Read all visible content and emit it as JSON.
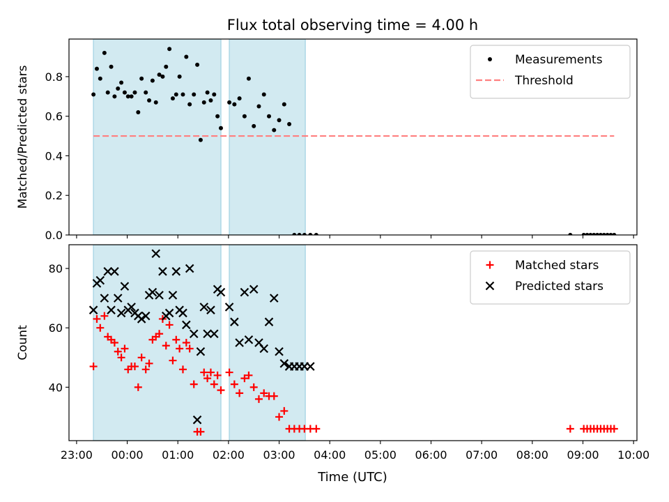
{
  "chart_data": {
    "type": "scatter",
    "title": "Flux total observing time = 4.00 h",
    "xlabel": "Time (UTC)",
    "xlim": [
      "22:51",
      "10:04"
    ],
    "xticks": [
      "23:00",
      "00:00",
      "01:00",
      "02:00",
      "03:00",
      "04:00",
      "05:00",
      "06:00",
      "07:00",
      "08:00",
      "09:00",
      "10:00"
    ],
    "shaded_intervals": [
      [
        "23:20",
        "01:51"
      ],
      [
        "02:01",
        "03:31"
      ]
    ],
    "shade_color": "#add8e6",
    "panels": [
      {
        "ylabel": "Matched/Predicted stars",
        "ylim": [
          0.0,
          0.99
        ],
        "yticks": [
          "0.0",
          "0.2",
          "0.4",
          "0.6",
          "0.8"
        ],
        "legend_loc": "upper right",
        "series": [
          {
            "name": "Measurements",
            "marker": "dot",
            "color": "#000000",
            "x": [
              "23:20",
              "23:24",
              "23:28",
              "23:33",
              "23:37",
              "23:41",
              "23:45",
              "23:49",
              "23:53",
              "23:57",
              "00:01",
              "00:05",
              "00:09",
              "00:13",
              "00:17",
              "00:22",
              "00:26",
              "00:30",
              "00:34",
              "00:38",
              "00:42",
              "00:46",
              "00:50",
              "00:54",
              "00:58",
              "01:02",
              "01:06",
              "01:10",
              "01:14",
              "01:19",
              "01:23",
              "01:27",
              "01:31",
              "01:35",
              "01:39",
              "01:43",
              "01:47",
              "01:51",
              "02:01",
              "02:07",
              "02:13",
              "02:19",
              "02:24",
              "02:30",
              "02:36",
              "02:42",
              "02:48",
              "02:54",
              "03:00",
              "03:06",
              "03:12",
              "03:18",
              "03:24",
              "03:30",
              "03:37",
              "03:44",
              "08:45",
              "09:01",
              "09:05",
              "09:09",
              "09:13",
              "09:17",
              "09:21",
              "09:25",
              "09:29",
              "09:33",
              "09:37"
            ],
            "y": [
              0.71,
              0.84,
              0.79,
              0.92,
              0.72,
              0.85,
              0.7,
              0.74,
              0.77,
              0.72,
              0.7,
              0.7,
              0.72,
              0.62,
              0.79,
              0.72,
              0.68,
              0.78,
              0.67,
              0.81,
              0.8,
              0.85,
              0.94,
              0.69,
              0.71,
              0.8,
              0.71,
              0.9,
              0.66,
              0.71,
              0.86,
              0.48,
              0.67,
              0.72,
              0.68,
              0.71,
              0.6,
              0.54,
              0.67,
              0.66,
              0.69,
              0.6,
              0.79,
              0.55,
              0.65,
              0.71,
              0.6,
              0.53,
              0.58,
              0.66,
              0.56,
              0.0,
              0.0,
              0.0,
              0.0,
              0.0,
              0.0,
              0.0,
              0.0,
              0.0,
              0.0,
              0.0,
              0.0,
              0.0,
              0.0,
              0.0,
              0.0
            ]
          },
          {
            "name": "Threshold",
            "style": "dashed",
            "color": "#ff7f7f",
            "x": [
              "23:20",
              "09:37"
            ],
            "y": [
              0.5,
              0.5
            ]
          }
        ]
      },
      {
        "ylabel": "Count",
        "ylim": [
          22,
          88
        ],
        "yticks": [
          "40",
          "60",
          "80"
        ],
        "legend_loc": "upper right",
        "series": [
          {
            "name": "Matched stars",
            "marker": "plus",
            "color": "#ff0000",
            "x": [
              "23:20",
              "23:24",
              "23:28",
              "23:33",
              "23:37",
              "23:41",
              "23:45",
              "23:49",
              "23:53",
              "23:57",
              "00:01",
              "00:05",
              "00:09",
              "00:13",
              "00:17",
              "00:22",
              "00:26",
              "00:30",
              "00:34",
              "00:38",
              "00:42",
              "00:46",
              "00:50",
              "00:54",
              "00:58",
              "01:02",
              "01:06",
              "01:10",
              "01:14",
              "01:19",
              "01:23",
              "01:27",
              "01:31",
              "01:35",
              "01:39",
              "01:43",
              "01:47",
              "01:51",
              "02:01",
              "02:07",
              "02:13",
              "02:19",
              "02:24",
              "02:30",
              "02:36",
              "02:42",
              "02:48",
              "02:54",
              "03:00",
              "03:06",
              "03:12",
              "03:18",
              "03:24",
              "03:30",
              "03:37",
              "03:44",
              "08:45",
              "09:01",
              "09:05",
              "09:09",
              "09:13",
              "09:17",
              "09:21",
              "09:25",
              "09:29",
              "09:33",
              "09:37"
            ],
            "y": [
              47,
              63,
              60,
              64,
              57,
              56,
              55,
              52,
              50,
              53,
              46,
              47,
              47,
              40,
              50,
              46,
              48,
              56,
              57,
              58,
              63,
              54,
              61,
              49,
              56,
              53,
              46,
              55,
              53,
              41,
              25,
              25,
              45,
              43,
              45,
              41,
              44,
              39,
              45,
              41,
              38,
              43,
              44,
              40,
              36,
              38,
              37,
              37,
              30,
              32,
              26,
              26,
              26,
              26,
              26,
              26,
              26,
              26,
              26,
              26,
              26,
              26,
              26,
              26,
              26,
              26,
              26
            ]
          },
          {
            "name": "Predicted stars",
            "marker": "x",
            "color": "#000000",
            "x": [
              "23:20",
              "23:24",
              "23:28",
              "23:33",
              "23:37",
              "23:41",
              "23:45",
              "23:49",
              "23:53",
              "23:57",
              "00:01",
              "00:05",
              "00:09",
              "00:13",
              "00:17",
              "00:22",
              "00:26",
              "00:30",
              "00:34",
              "00:38",
              "00:42",
              "00:46",
              "00:50",
              "00:54",
              "00:58",
              "01:02",
              "01:06",
              "01:10",
              "01:14",
              "01:19",
              "01:23",
              "01:27",
              "01:31",
              "01:35",
              "01:39",
              "01:43",
              "01:47",
              "01:51",
              "02:01",
              "02:07",
              "02:13",
              "02:19",
              "02:24",
              "02:30",
              "02:36",
              "02:42",
              "02:48",
              "02:54",
              "03:00",
              "03:06",
              "03:12",
              "03:18",
              "03:24",
              "03:30",
              "03:37"
            ],
            "y": [
              66,
              75,
              76,
              70,
              79,
              66,
              79,
              70,
              65,
              74,
              66,
              67,
              65,
              64,
              63,
              64,
              71,
              72,
              85,
              71,
              79,
              64,
              65,
              71,
              79,
              66,
              65,
              61,
              80,
              58,
              29,
              52,
              67,
              58,
              66,
              58,
              73,
              72,
              67,
              62,
              55,
              72,
              56,
              73,
              55,
              53,
              62,
              70,
              52,
              48,
              47,
              47,
              47,
              47,
              47
            ]
          }
        ]
      }
    ]
  }
}
